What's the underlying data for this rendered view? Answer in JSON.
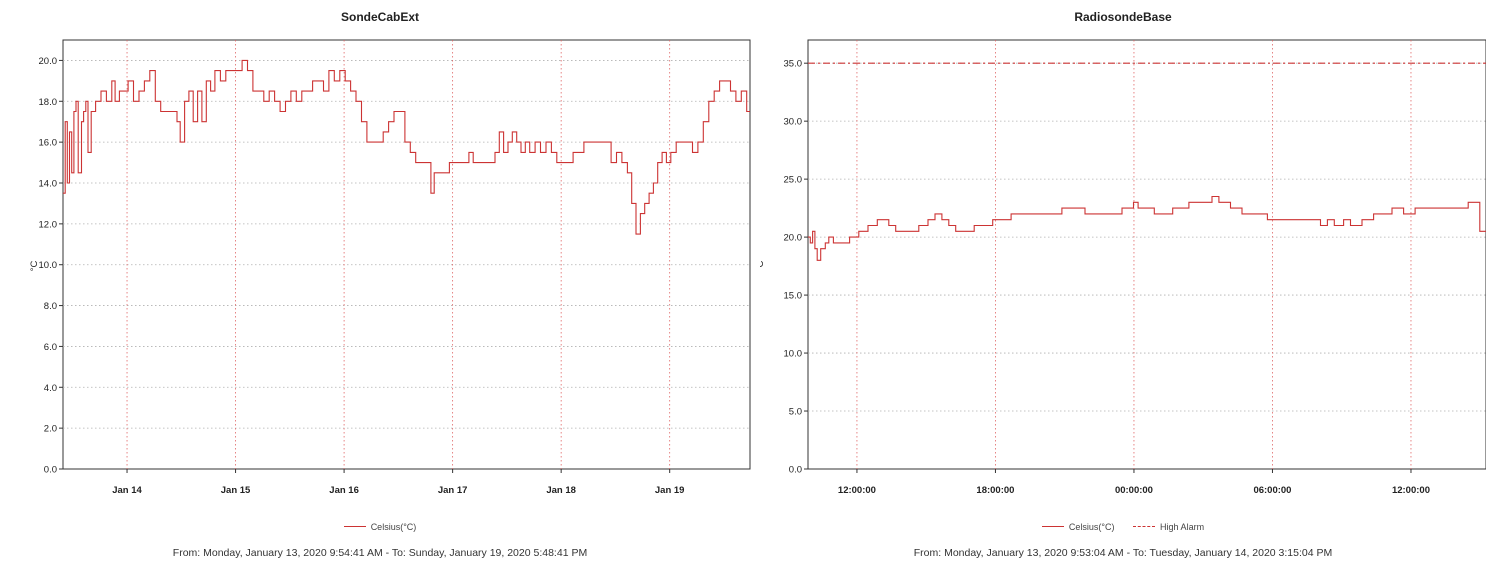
{
  "chart_data": [
    {
      "type": "line",
      "title": "SondeCabExt",
      "ylabel": "°C",
      "xlabel": "",
      "ylim": [
        0,
        21
      ],
      "xlim": [
        0,
        6.33
      ],
      "yticks": [
        "0.0",
        "2.0",
        "4.0",
        "6.0",
        "8.0",
        "10.0",
        "12.0",
        "14.0",
        "16.0",
        "18.0",
        "20.0"
      ],
      "xticks": [
        {
          "label": "Jan 14",
          "x": 0.59
        },
        {
          "label": "Jan 15",
          "x": 1.59
        },
        {
          "label": "Jan 16",
          "x": 2.59
        },
        {
          "label": "Jan 17",
          "x": 3.59
        },
        {
          "label": "Jan 18",
          "x": 4.59
        },
        {
          "label": "Jan 19",
          "x": 5.59
        }
      ],
      "grid": true,
      "legend_position": "bottom",
      "series": [
        {
          "name": "Celsius(°C)",
          "color": "#cc3333",
          "points": [
            [
              0.0,
              13.5
            ],
            [
              0.02,
              17.0
            ],
            [
              0.04,
              14.0
            ],
            [
              0.06,
              16.5
            ],
            [
              0.08,
              14.5
            ],
            [
              0.1,
              17.5
            ],
            [
              0.12,
              18.0
            ],
            [
              0.14,
              14.5
            ],
            [
              0.17,
              17.0
            ],
            [
              0.19,
              17.5
            ],
            [
              0.21,
              18.0
            ],
            [
              0.23,
              15.5
            ],
            [
              0.26,
              17.5
            ],
            [
              0.3,
              18.0
            ],
            [
              0.35,
              18.5
            ],
            [
              0.4,
              18.0
            ],
            [
              0.45,
              19.0
            ],
            [
              0.48,
              18.0
            ],
            [
              0.52,
              18.5
            ],
            [
              0.57,
              18.5
            ],
            [
              0.6,
              19.0
            ],
            [
              0.65,
              18.0
            ],
            [
              0.7,
              18.5
            ],
            [
              0.75,
              19.0
            ],
            [
              0.8,
              19.5
            ],
            [
              0.85,
              18.0
            ],
            [
              0.9,
              17.5
            ],
            [
              0.95,
              17.5
            ],
            [
              1.0,
              17.5
            ],
            [
              1.05,
              17.0
            ],
            [
              1.08,
              16.0
            ],
            [
              1.12,
              18.0
            ],
            [
              1.16,
              18.5
            ],
            [
              1.2,
              17.0
            ],
            [
              1.24,
              18.5
            ],
            [
              1.28,
              17.0
            ],
            [
              1.32,
              19.0
            ],
            [
              1.36,
              18.5
            ],
            [
              1.4,
              19.5
            ],
            [
              1.45,
              19.0
            ],
            [
              1.5,
              19.5
            ],
            [
              1.55,
              19.5
            ],
            [
              1.6,
              19.5
            ],
            [
              1.65,
              20.0
            ],
            [
              1.7,
              19.5
            ],
            [
              1.75,
              18.5
            ],
            [
              1.8,
              18.5
            ],
            [
              1.85,
              18.0
            ],
            [
              1.9,
              18.5
            ],
            [
              1.95,
              18.0
            ],
            [
              2.0,
              17.5
            ],
            [
              2.05,
              18.0
            ],
            [
              2.1,
              18.5
            ],
            [
              2.15,
              18.0
            ],
            [
              2.2,
              18.5
            ],
            [
              2.25,
              18.5
            ],
            [
              2.3,
              19.0
            ],
            [
              2.35,
              19.0
            ],
            [
              2.4,
              18.5
            ],
            [
              2.45,
              19.5
            ],
            [
              2.5,
              19.0
            ],
            [
              2.55,
              19.5
            ],
            [
              2.6,
              19.0
            ],
            [
              2.65,
              18.5
            ],
            [
              2.7,
              18.0
            ],
            [
              2.75,
              17.0
            ],
            [
              2.8,
              16.0
            ],
            [
              2.85,
              16.0
            ],
            [
              2.9,
              16.0
            ],
            [
              2.95,
              16.5
            ],
            [
              3.0,
              17.0
            ],
            [
              3.05,
              17.5
            ],
            [
              3.1,
              17.5
            ],
            [
              3.15,
              16.0
            ],
            [
              3.2,
              15.5
            ],
            [
              3.25,
              15.0
            ],
            [
              3.3,
              15.0
            ],
            [
              3.35,
              15.0
            ],
            [
              3.39,
              13.5
            ],
            [
              3.42,
              14.5
            ],
            [
              3.47,
              14.5
            ],
            [
              3.52,
              14.5
            ],
            [
              3.56,
              15.0
            ],
            [
              3.6,
              15.0
            ],
            [
              3.65,
              15.0
            ],
            [
              3.7,
              15.0
            ],
            [
              3.74,
              15.5
            ],
            [
              3.78,
              15.0
            ],
            [
              3.84,
              15.0
            ],
            [
              3.9,
              15.0
            ],
            [
              3.94,
              15.0
            ],
            [
              3.98,
              15.5
            ],
            [
              4.02,
              16.5
            ],
            [
              4.06,
              15.5
            ],
            [
              4.1,
              16.0
            ],
            [
              4.14,
              16.5
            ],
            [
              4.18,
              16.0
            ],
            [
              4.22,
              15.5
            ],
            [
              4.26,
              16.0
            ],
            [
              4.3,
              15.5
            ],
            [
              4.35,
              16.0
            ],
            [
              4.4,
              15.5
            ],
            [
              4.45,
              16.0
            ],
            [
              4.5,
              15.5
            ],
            [
              4.55,
              15.0
            ],
            [
              4.6,
              15.0
            ],
            [
              4.65,
              15.0
            ],
            [
              4.7,
              15.5
            ],
            [
              4.75,
              15.5
            ],
            [
              4.8,
              16.0
            ],
            [
              4.85,
              16.0
            ],
            [
              4.9,
              16.0
            ],
            [
              4.95,
              16.0
            ],
            [
              5.0,
              16.0
            ],
            [
              5.05,
              15.0
            ],
            [
              5.1,
              15.5
            ],
            [
              5.15,
              15.0
            ],
            [
              5.2,
              14.5
            ],
            [
              5.24,
              13.0
            ],
            [
              5.28,
              11.5
            ],
            [
              5.32,
              12.5
            ],
            [
              5.36,
              13.0
            ],
            [
              5.4,
              13.5
            ],
            [
              5.44,
              14.0
            ],
            [
              5.48,
              15.0
            ],
            [
              5.52,
              15.5
            ],
            [
              5.56,
              15.0
            ],
            [
              5.6,
              15.5
            ],
            [
              5.65,
              16.0
            ],
            [
              5.7,
              16.0
            ],
            [
              5.75,
              16.0
            ],
            [
              5.8,
              15.5
            ],
            [
              5.85,
              16.0
            ],
            [
              5.9,
              17.0
            ],
            [
              5.95,
              18.0
            ],
            [
              6.0,
              18.5
            ],
            [
              6.05,
              19.0
            ],
            [
              6.1,
              19.0
            ],
            [
              6.15,
              18.5
            ],
            [
              6.2,
              18.0
            ],
            [
              6.25,
              18.5
            ],
            [
              6.3,
              17.5
            ],
            [
              6.33,
              17.5
            ]
          ]
        }
      ],
      "footer": "From: Monday, January 13, 2020 9:54:41 AM  -  To: Sunday, January 19, 2020 5:48:41 PM"
    },
    {
      "type": "line",
      "title": "RadiosondeBase",
      "ylabel": "°C",
      "xlabel": "",
      "ylim": [
        0,
        37
      ],
      "xlim": [
        0,
        29.37
      ],
      "yticks": [
        "0.0",
        "5.0",
        "10.0",
        "15.0",
        "20.0",
        "25.0",
        "30.0",
        "35.0"
      ],
      "xticks": [
        {
          "label": "12:00:00",
          "x": 2.12
        },
        {
          "label": "18:00:00",
          "x": 8.12
        },
        {
          "label": "00:00:00",
          "x": 14.12
        },
        {
          "label": "06:00:00",
          "x": 20.12
        },
        {
          "label": "12:00:00",
          "x": 26.12
        }
      ],
      "grid": true,
      "legend_position": "bottom",
      "series": [
        {
          "name": "Celsius(°C)",
          "color": "#cc3333",
          "style": "solid",
          "points": [
            [
              0.0,
              20.0
            ],
            [
              0.1,
              19.5
            ],
            [
              0.2,
              20.5
            ],
            [
              0.3,
              19.0
            ],
            [
              0.4,
              18.0
            ],
            [
              0.55,
              19.0
            ],
            [
              0.75,
              19.5
            ],
            [
              0.9,
              20.0
            ],
            [
              1.1,
              19.5
            ],
            [
              1.6,
              19.5
            ],
            [
              1.8,
              20.0
            ],
            [
              2.2,
              20.5
            ],
            [
              2.6,
              21.0
            ],
            [
              3.0,
              21.5
            ],
            [
              3.5,
              21.0
            ],
            [
              3.8,
              20.5
            ],
            [
              4.4,
              20.5
            ],
            [
              4.8,
              21.0
            ],
            [
              5.2,
              21.5
            ],
            [
              5.5,
              22.0
            ],
            [
              5.8,
              21.5
            ],
            [
              6.1,
              21.0
            ],
            [
              6.4,
              20.5
            ],
            [
              6.8,
              20.5
            ],
            [
              7.2,
              21.0
            ],
            [
              8.0,
              21.5
            ],
            [
              8.8,
              22.0
            ],
            [
              10.0,
              22.0
            ],
            [
              11.0,
              22.5
            ],
            [
              12.0,
              22.0
            ],
            [
              13.0,
              22.0
            ],
            [
              13.6,
              22.5
            ],
            [
              14.1,
              23.0
            ],
            [
              14.3,
              22.5
            ],
            [
              14.6,
              22.5
            ],
            [
              15.0,
              22.0
            ],
            [
              15.8,
              22.5
            ],
            [
              16.5,
              23.0
            ],
            [
              17.0,
              23.0
            ],
            [
              17.5,
              23.5
            ],
            [
              17.8,
              23.0
            ],
            [
              18.3,
              22.5
            ],
            [
              18.8,
              22.0
            ],
            [
              19.5,
              22.0
            ],
            [
              19.9,
              21.5
            ],
            [
              20.5,
              21.5
            ],
            [
              21.5,
              21.5
            ],
            [
              22.0,
              21.5
            ],
            [
              22.2,
              21.0
            ],
            [
              22.5,
              21.5
            ],
            [
              22.8,
              21.0
            ],
            [
              23.2,
              21.5
            ],
            [
              23.5,
              21.0
            ],
            [
              24.0,
              21.5
            ],
            [
              24.5,
              22.0
            ],
            [
              25.3,
              22.5
            ],
            [
              25.8,
              22.0
            ],
            [
              26.3,
              22.5
            ],
            [
              27.5,
              22.5
            ],
            [
              28.2,
              22.5
            ],
            [
              28.6,
              23.0
            ],
            [
              28.9,
              23.0
            ],
            [
              29.1,
              20.5
            ],
            [
              29.37,
              20.5
            ]
          ]
        },
        {
          "name": "High Alarm",
          "color": "#cc3333",
          "style": "dashdot",
          "points": [
            [
              0.0,
              35.0
            ],
            [
              29.37,
              35.0
            ]
          ]
        }
      ],
      "footer": "From: Monday, January 13, 2020 9:53:04 AM  -  To: Tuesday, January 14, 2020 3:15:04 PM"
    }
  ]
}
